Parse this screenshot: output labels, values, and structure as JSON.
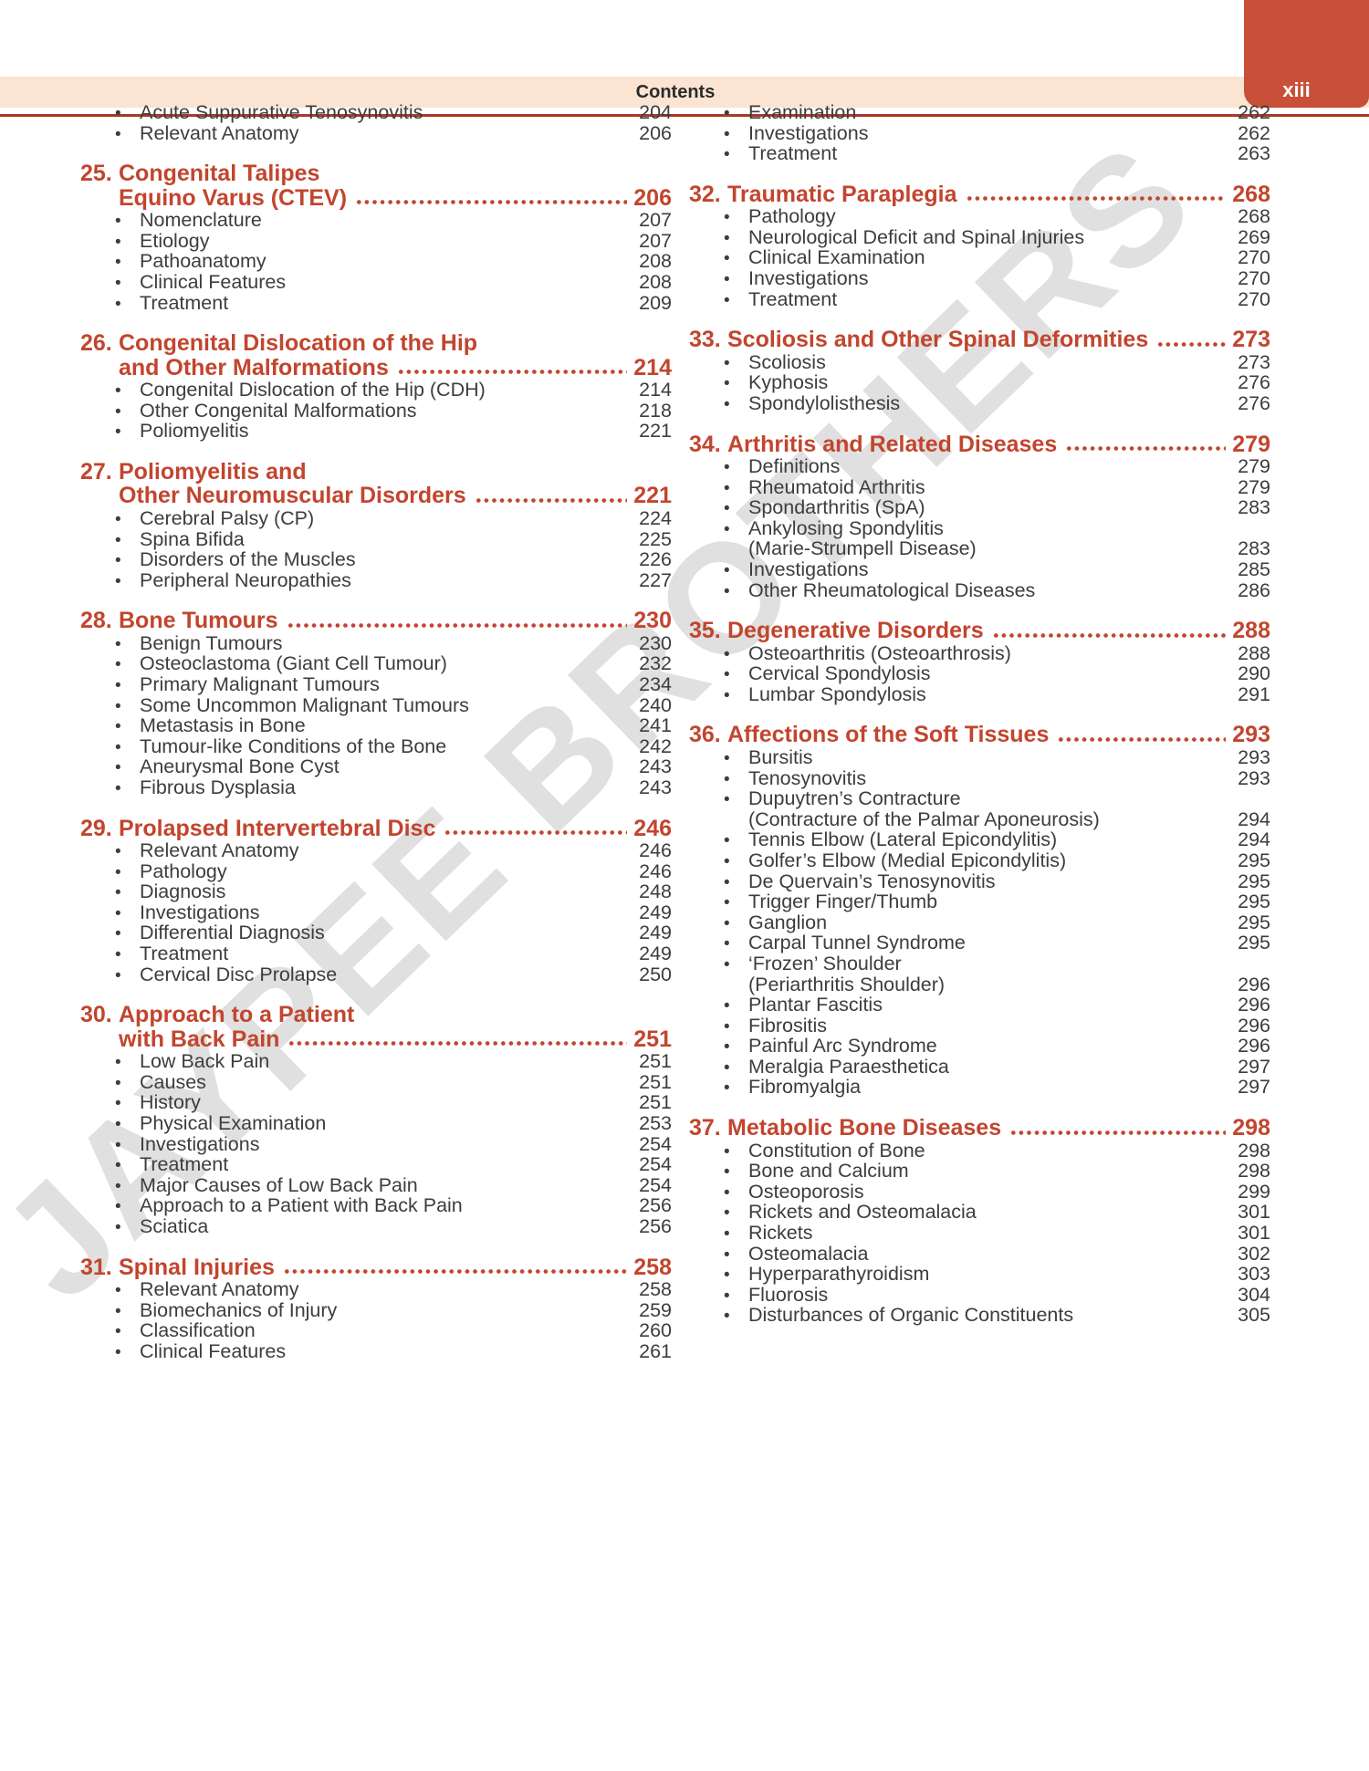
{
  "page": {
    "header_title": "Contents",
    "page_number_roman": "xiii"
  },
  "watermark": {
    "text": "JAYPEE BROTHERS"
  },
  "colors": {
    "chapter_red": "#c2452e",
    "tab_red": "#c94f38",
    "header_band": "#fbe5d2",
    "header_rule": "#a63b27",
    "body_text": "#3d3d3d",
    "watermark_gray": "#c2c2c2"
  },
  "toc": {
    "columns": [
      {
        "sections": [
          {
            "number": "",
            "title_lines": [],
            "page": "",
            "items": [
              {
                "lines": [
                  "Acute Suppurative Tenosynovitis"
                ],
                "page": "204"
              },
              {
                "lines": [
                  "Relevant Anatomy"
                ],
                "page": "206"
              }
            ]
          },
          {
            "number": "25.",
            "title_lines": [
              "Congenital Talipes",
              "Equino Varus (CTEV)"
            ],
            "page": "206",
            "items": [
              {
                "lines": [
                  "Nomenclature"
                ],
                "page": "207"
              },
              {
                "lines": [
                  "Etiology"
                ],
                "page": "207"
              },
              {
                "lines": [
                  "Pathoanatomy"
                ],
                "page": "208"
              },
              {
                "lines": [
                  "Clinical Features"
                ],
                "page": "208"
              },
              {
                "lines": [
                  "Treatment"
                ],
                "page": "209"
              }
            ]
          },
          {
            "number": "26.",
            "title_lines": [
              "Congenital Dislocation of the Hip",
              "and Other Malformations"
            ],
            "page": "214",
            "items": [
              {
                "lines": [
                  "Congenital Dislocation of the Hip (CDH)"
                ],
                "page": "214"
              },
              {
                "lines": [
                  "Other Congenital Malformations"
                ],
                "page": "218"
              },
              {
                "lines": [
                  "Poliomyelitis"
                ],
                "page": "221"
              }
            ]
          },
          {
            "number": "27.",
            "title_lines": [
              "Poliomyelitis and",
              "Other Neuromuscular Disorders"
            ],
            "page": "221",
            "items": [
              {
                "lines": [
                  "Cerebral Palsy (CP)"
                ],
                "page": "224"
              },
              {
                "lines": [
                  "Spina Bifida"
                ],
                "page": "225"
              },
              {
                "lines": [
                  "Disorders of the Muscles"
                ],
                "page": "226"
              },
              {
                "lines": [
                  "Peripheral Neuropathies"
                ],
                "page": "227"
              }
            ]
          },
          {
            "number": "28.",
            "title_lines": [
              "Bone Tumours"
            ],
            "page": "230",
            "items": [
              {
                "lines": [
                  "Benign Tumours"
                ],
                "page": "230"
              },
              {
                "lines": [
                  "Osteoclastoma (Giant Cell Tumour)"
                ],
                "page": "232"
              },
              {
                "lines": [
                  "Primary Malignant Tumours"
                ],
                "page": "234"
              },
              {
                "lines": [
                  "Some Uncommon Malignant Tumours"
                ],
                "page": "240"
              },
              {
                "lines": [
                  "Metastasis in Bone"
                ],
                "page": "241"
              },
              {
                "lines": [
                  "Tumour-like Conditions of the Bone"
                ],
                "page": "242"
              },
              {
                "lines": [
                  "Aneurysmal Bone Cyst"
                ],
                "page": "243"
              },
              {
                "lines": [
                  "Fibrous Dysplasia"
                ],
                "page": "243"
              }
            ]
          },
          {
            "number": "29.",
            "title_lines": [
              "Prolapsed Intervertebral Disc"
            ],
            "page": "246",
            "items": [
              {
                "lines": [
                  "Relevant Anatomy"
                ],
                "page": "246"
              },
              {
                "lines": [
                  "Pathology"
                ],
                "page": "246"
              },
              {
                "lines": [
                  "Diagnosis"
                ],
                "page": "248"
              },
              {
                "lines": [
                  "Investigations"
                ],
                "page": "249"
              },
              {
                "lines": [
                  "Differential Diagnosis"
                ],
                "page": "249"
              },
              {
                "lines": [
                  "Treatment"
                ],
                "page": "249"
              },
              {
                "lines": [
                  "Cervical Disc Prolapse"
                ],
                "page": "250"
              }
            ]
          },
          {
            "number": "30.",
            "title_lines": [
              "Approach to a Patient",
              "with Back Pain "
            ],
            "page": "251",
            "items": [
              {
                "lines": [
                  "Low Back Pain"
                ],
                "page": "251"
              },
              {
                "lines": [
                  "Causes"
                ],
                "page": "251"
              },
              {
                "lines": [
                  "History"
                ],
                "page": "251"
              },
              {
                "lines": [
                  "Physical Examination"
                ],
                "page": "253"
              },
              {
                "lines": [
                  "Investigations"
                ],
                "page": "254"
              },
              {
                "lines": [
                  "Treatment"
                ],
                "page": "254"
              },
              {
                "lines": [
                  "Major Causes of Low Back Pain"
                ],
                "page": "254"
              },
              {
                "lines": [
                  "Approach to a Patient with Back Pain"
                ],
                "page": "256"
              },
              {
                "lines": [
                  "Sciatica"
                ],
                "page": "256"
              }
            ]
          },
          {
            "number": "31.",
            "title_lines": [
              "Spinal Injuries"
            ],
            "page": "258",
            "items": [
              {
                "lines": [
                  "Relevant Anatomy"
                ],
                "page": "258"
              },
              {
                "lines": [
                  "Biomechanics of Injury"
                ],
                "page": "259"
              },
              {
                "lines": [
                  "Classification"
                ],
                "page": "260"
              },
              {
                "lines": [
                  "Clinical Features"
                ],
                "page": "261"
              }
            ]
          }
        ]
      },
      {
        "sections": [
          {
            "number": "",
            "title_lines": [],
            "page": "",
            "items": [
              {
                "lines": [
                  "Examination"
                ],
                "page": "262"
              },
              {
                "lines": [
                  "Investigations"
                ],
                "page": "262"
              },
              {
                "lines": [
                  "Treatment"
                ],
                "page": "263"
              }
            ]
          },
          {
            "number": "32.",
            "title_lines": [
              "Traumatic Paraplegia "
            ],
            "page": "268",
            "items": [
              {
                "lines": [
                  "Pathology"
                ],
                "page": "268"
              },
              {
                "lines": [
                  "Neurological Deficit and Spinal Injuries"
                ],
                "page": "269"
              },
              {
                "lines": [
                  "Clinical Examination"
                ],
                "page": "270"
              },
              {
                "lines": [
                  "Investigations"
                ],
                "page": "270"
              },
              {
                "lines": [
                  "Treatment"
                ],
                "page": "270"
              }
            ]
          },
          {
            "number": "33.",
            "title_lines": [
              "Scoliosis and Other Spinal Deformities"
            ],
            "page": "273",
            "items": [
              {
                "lines": [
                  "Scoliosis"
                ],
                "page": "273"
              },
              {
                "lines": [
                  "Kyphosis"
                ],
                "page": "276"
              },
              {
                "lines": [
                  "Spondylolisthesis"
                ],
                "page": "276"
              }
            ]
          },
          {
            "number": "34.",
            "title_lines": [
              "Arthritis and Related Diseases"
            ],
            "page": "279",
            "items": [
              {
                "lines": [
                  "Definitions"
                ],
                "page": "279"
              },
              {
                "lines": [
                  "Rheumatoid Arthritis"
                ],
                "page": "279"
              },
              {
                "lines": [
                  "Spondarthritis (SpA)"
                ],
                "page": "283"
              },
              {
                "lines": [
                  "Ankylosing Spondylitis",
                  "(Marie-Strumpell Disease)"
                ],
                "page": "283"
              },
              {
                "lines": [
                  "Investigations"
                ],
                "page": "285"
              },
              {
                "lines": [
                  "Other Rheumatological Diseases"
                ],
                "page": "286"
              }
            ]
          },
          {
            "number": "35.",
            "title_lines": [
              "Degenerative Disorders"
            ],
            "page": "288",
            "items": [
              {
                "lines": [
                  "Osteoarthritis (Osteoarthrosis)"
                ],
                "page": "288"
              },
              {
                "lines": [
                  "Cervical Spondylosis"
                ],
                "page": "290"
              },
              {
                "lines": [
                  "Lumbar Spondylosis"
                ],
                "page": "291"
              }
            ]
          },
          {
            "number": "36.",
            "title_lines": [
              "Affections of the Soft Tissues "
            ],
            "page": "293",
            "items": [
              {
                "lines": [
                  "Bursitis"
                ],
                "page": "293"
              },
              {
                "lines": [
                  "Tenosynovitis"
                ],
                "page": "293"
              },
              {
                "lines": [
                  "Dupuytren’s Contracture",
                  "(Contracture of the Palmar Aponeurosis)"
                ],
                "page": "294"
              },
              {
                "lines": [
                  "Tennis Elbow (Lateral Epicondylitis)"
                ],
                "page": "294"
              },
              {
                "lines": [
                  "Golfer’s Elbow (Medial Epicondylitis)"
                ],
                "page": "295"
              },
              {
                "lines": [
                  "De Quervain’s Tenosynovitis"
                ],
                "page": "295"
              },
              {
                "lines": [
                  "Trigger Finger/Thumb"
                ],
                "page": "295"
              },
              {
                "lines": [
                  "Ganglion"
                ],
                "page": "295"
              },
              {
                "lines": [
                  "Carpal Tunnel Syndrome"
                ],
                "page": "295"
              },
              {
                "lines": [
                  "‘Frozen’ Shoulder",
                  "(Periarthritis Shoulder)"
                ],
                "page": "296"
              },
              {
                "lines": [
                  "Plantar Fascitis"
                ],
                "page": "296"
              },
              {
                "lines": [
                  "Fibrositis"
                ],
                "page": "296"
              },
              {
                "lines": [
                  "Painful Arc Syndrome"
                ],
                "page": "296"
              },
              {
                "lines": [
                  "Meralgia Paraesthetica"
                ],
                "page": "297"
              },
              {
                "lines": [
                  "Fibromyalgia"
                ],
                "page": "297"
              }
            ]
          },
          {
            "number": "37.",
            "title_lines": [
              "Metabolic Bone Diseases"
            ],
            "page": "298",
            "items": [
              {
                "lines": [
                  "Constitution of Bone"
                ],
                "page": "298"
              },
              {
                "lines": [
                  "Bone and Calcium"
                ],
                "page": "298"
              },
              {
                "lines": [
                  "Osteoporosis"
                ],
                "page": "299"
              },
              {
                "lines": [
                  "Rickets and Osteomalacia"
                ],
                "page": "301"
              },
              {
                "lines": [
                  "Rickets"
                ],
                "page": "301"
              },
              {
                "lines": [
                  "Osteomalacia"
                ],
                "page": "302"
              },
              {
                "lines": [
                  "Hyperparathyroidism"
                ],
                "page": "303"
              },
              {
                "lines": [
                  "Fluorosis"
                ],
                "page": "304"
              },
              {
                "lines": [
                  "Disturbances of Organic Constituents"
                ],
                "page": "305"
              }
            ]
          }
        ]
      }
    ]
  }
}
